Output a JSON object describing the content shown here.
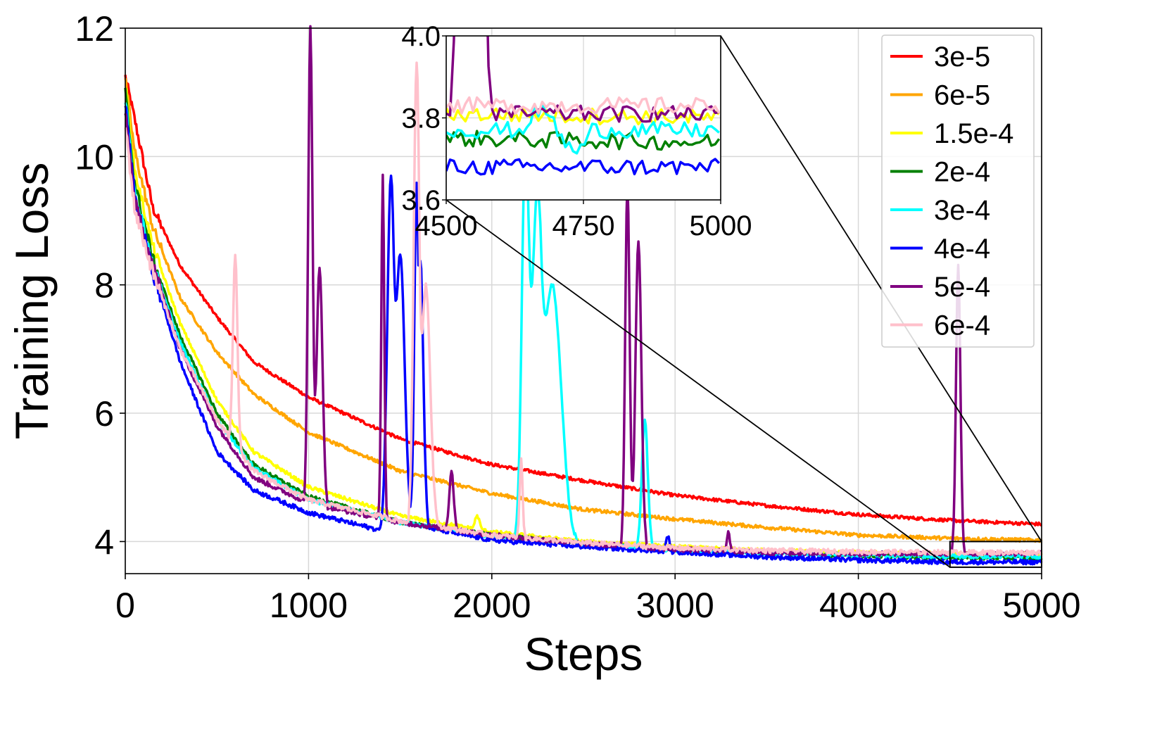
{
  "chart_data": {
    "type": "line",
    "title": "",
    "xlabel": "Steps",
    "ylabel": "Training Loss",
    "xlim": [
      0,
      5000
    ],
    "ylim": [
      3.5,
      12
    ],
    "xticks": [
      "0",
      "1000",
      "2000",
      "3000",
      "4000",
      "5000"
    ],
    "yticks": [
      "4",
      "6",
      "8",
      "10",
      "12"
    ],
    "grid": true,
    "legend_position": "top-right",
    "series": [
      {
        "name": "3e-5",
        "color": "#ff0000",
        "start": 11.25,
        "final": 4.28,
        "tau": 1500,
        "knots": [
          [
            0,
            11.25
          ],
          [
            50,
            10.6
          ],
          [
            150,
            9.2
          ],
          [
            300,
            8.3
          ],
          [
            500,
            7.5
          ],
          [
            700,
            6.8
          ],
          [
            1000,
            6.25
          ],
          [
            1500,
            5.6
          ],
          [
            2000,
            5.2
          ],
          [
            2500,
            4.95
          ],
          [
            3000,
            4.72
          ],
          [
            3500,
            4.56
          ],
          [
            4000,
            4.42
          ],
          [
            4500,
            4.33
          ],
          [
            5000,
            4.27
          ]
        ],
        "spikes": []
      },
      {
        "name": "6e-5",
        "color": "#ffa500",
        "start": 11.2,
        "final": 4.02,
        "tau": 1200,
        "knots": [
          [
            0,
            11.2
          ],
          [
            50,
            10.1
          ],
          [
            150,
            8.9
          ],
          [
            300,
            7.8
          ],
          [
            500,
            6.95
          ],
          [
            700,
            6.3
          ],
          [
            1000,
            5.7
          ],
          [
            1500,
            5.1
          ],
          [
            2000,
            4.75
          ],
          [
            2500,
            4.5
          ],
          [
            3000,
            4.35
          ],
          [
            3500,
            4.22
          ],
          [
            4000,
            4.1
          ],
          [
            4500,
            4.05
          ],
          [
            5000,
            4.02
          ]
        ],
        "spikes": []
      },
      {
        "name": "1.5e-4",
        "color": "#ffff00",
        "start": 11.1,
        "final": 3.81,
        "tau": 700,
        "knots": [
          [
            0,
            11.1
          ],
          [
            50,
            9.8
          ],
          [
            150,
            8.6
          ],
          [
            300,
            7.4
          ],
          [
            500,
            6.2
          ],
          [
            700,
            5.4
          ],
          [
            1000,
            4.85
          ],
          [
            1500,
            4.4
          ],
          [
            2000,
            4.15
          ],
          [
            2500,
            4.0
          ],
          [
            3000,
            3.92
          ],
          [
            3500,
            3.86
          ],
          [
            4000,
            3.83
          ],
          [
            4500,
            3.81
          ],
          [
            5000,
            3.8
          ]
        ],
        "spikes": [
          [
            1920,
            4.4,
            15
          ]
        ]
      },
      {
        "name": "2e-4",
        "color": "#008000",
        "start": 11.0,
        "final": 3.75,
        "tau": 650,
        "knots": [
          [
            0,
            11.0
          ],
          [
            50,
            9.6
          ],
          [
            150,
            8.4
          ],
          [
            300,
            7.2
          ],
          [
            500,
            6.0
          ],
          [
            700,
            5.2
          ],
          [
            1000,
            4.7
          ],
          [
            1500,
            4.3
          ],
          [
            2000,
            4.1
          ],
          [
            2500,
            3.97
          ],
          [
            3000,
            3.88
          ],
          [
            3500,
            3.82
          ],
          [
            4000,
            3.78
          ],
          [
            4500,
            3.75
          ],
          [
            5000,
            3.74
          ]
        ],
        "spikes": []
      },
      {
        "name": "3e-4",
        "color": "#00ffff",
        "start": 10.9,
        "final": 3.77,
        "tau": 600,
        "knots": [
          [
            0,
            10.9
          ],
          [
            50,
            9.5
          ],
          [
            150,
            8.3
          ],
          [
            300,
            7.1
          ],
          [
            500,
            5.9
          ],
          [
            700,
            5.15
          ],
          [
            1000,
            4.65
          ],
          [
            1500,
            4.3
          ],
          [
            2000,
            4.08
          ],
          [
            2500,
            3.95
          ],
          [
            3000,
            3.87
          ],
          [
            3500,
            3.82
          ],
          [
            4000,
            3.79
          ],
          [
            4500,
            3.77
          ],
          [
            5000,
            3.77
          ]
        ],
        "spikes": [
          [
            2185,
            10.5,
            25
          ],
          [
            2250,
            9.5,
            40
          ],
          [
            2330,
            8.0,
            60
          ],
          [
            2835,
            5.9,
            20
          ]
        ]
      },
      {
        "name": "4e-4",
        "color": "#0000ff",
        "start": 10.8,
        "final": 3.68,
        "tau": 500,
        "knots": [
          [
            0,
            10.8
          ],
          [
            50,
            9.4
          ],
          [
            150,
            8.2
          ],
          [
            300,
            6.8
          ],
          [
            500,
            5.4
          ],
          [
            700,
            4.8
          ],
          [
            1000,
            4.45
          ],
          [
            1430,
            4.15
          ],
          [
            1450,
            4.4
          ],
          [
            1500,
            4.3
          ],
          [
            2000,
            4.02
          ],
          [
            2500,
            3.92
          ],
          [
            3000,
            3.84
          ],
          [
            3500,
            3.76
          ],
          [
            4000,
            3.71
          ],
          [
            4500,
            3.68
          ],
          [
            5000,
            3.68
          ]
        ],
        "spikes": [
          [
            1450,
            9.7,
            25
          ],
          [
            1500,
            8.5,
            30
          ],
          [
            1590,
            9.6,
            15
          ],
          [
            1610,
            8.4,
            20
          ],
          [
            2960,
            4.1,
            10
          ]
        ]
      },
      {
        "name": "5e-4",
        "color": "#800080",
        "start": 10.7,
        "final": 3.81,
        "tau": 550,
        "knots": [
          [
            0,
            10.7
          ],
          [
            50,
            9.3
          ],
          [
            150,
            8.3
          ],
          [
            300,
            7.0
          ],
          [
            500,
            5.8
          ],
          [
            700,
            5.0
          ],
          [
            1000,
            4.6
          ],
          [
            1500,
            4.3
          ],
          [
            2000,
            4.1
          ],
          [
            2500,
            3.97
          ],
          [
            3000,
            3.88
          ],
          [
            3500,
            3.83
          ],
          [
            4000,
            3.81
          ],
          [
            4500,
            3.81
          ],
          [
            5000,
            3.81
          ]
        ],
        "spikes": [
          [
            1010,
            12,
            15
          ],
          [
            1060,
            8.3,
            20
          ],
          [
            1405,
            9.7,
            10
          ],
          [
            1780,
            5.1,
            15
          ],
          [
            2740,
            9.6,
            15
          ],
          [
            2800,
            8.7,
            20
          ],
          [
            3290,
            4.15,
            10
          ],
          [
            4545,
            8.3,
            15
          ]
        ]
      },
      {
        "name": "6e-4",
        "color": "#ffc0cb",
        "start": 10.5,
        "final": 3.83,
        "tau": 600,
        "knots": [
          [
            0,
            10.5
          ],
          [
            50,
            9.2
          ],
          [
            150,
            8.2
          ],
          [
            300,
            7.0
          ],
          [
            500,
            5.9
          ],
          [
            700,
            5.1
          ],
          [
            1000,
            4.65
          ],
          [
            1500,
            4.32
          ],
          [
            2000,
            4.1
          ],
          [
            2500,
            3.98
          ],
          [
            3000,
            3.9
          ],
          [
            3500,
            3.86
          ],
          [
            4000,
            3.84
          ],
          [
            4500,
            3.83
          ],
          [
            5000,
            3.83
          ]
        ],
        "spikes": [
          [
            600,
            8.5,
            15
          ],
          [
            1590,
            11.5,
            20
          ],
          [
            1640,
            8.0,
            30
          ],
          [
            2160,
            5.3,
            10
          ]
        ]
      }
    ],
    "inset": {
      "xlim": [
        4500,
        5000
      ],
      "ylim": [
        3.6,
        4.0
      ],
      "xticks": [
        "4500",
        "4750",
        "5000"
      ],
      "yticks": [
        "3.6",
        "3.8",
        "4.0"
      ]
    }
  }
}
